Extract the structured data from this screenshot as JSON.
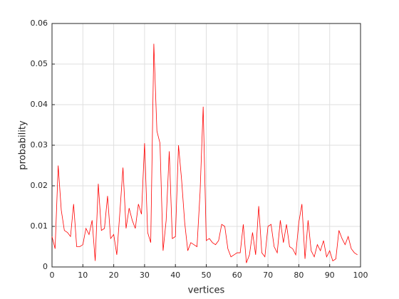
{
  "chart_data": {
    "type": "line",
    "xlabel": "vertices",
    "ylabel": "probability",
    "x": [
      0,
      1,
      2,
      3,
      4,
      5,
      6,
      7,
      8,
      9,
      10,
      11,
      12,
      13,
      14,
      15,
      16,
      17,
      18,
      19,
      20,
      21,
      22,
      23,
      24,
      25,
      26,
      27,
      28,
      29,
      30,
      31,
      32,
      33,
      34,
      35,
      36,
      37,
      38,
      39,
      40,
      41,
      42,
      43,
      44,
      45,
      46,
      47,
      48,
      49,
      50,
      51,
      52,
      53,
      54,
      55,
      56,
      57,
      58,
      59,
      60,
      61,
      62,
      63,
      64,
      65,
      66,
      67,
      68,
      69,
      70,
      71,
      72,
      73,
      74,
      75,
      76,
      77,
      78,
      79,
      80,
      81,
      82,
      83,
      84,
      85,
      86,
      87,
      88,
      89,
      90,
      91,
      92,
      93,
      94,
      95,
      96,
      97,
      98,
      99
    ],
    "series": [
      {
        "color": "#ff0000",
        "values": [
          0.0075,
          0.0045,
          0.025,
          0.014,
          0.009,
          0.0085,
          0.0075,
          0.0155,
          0.005,
          0.005,
          0.0055,
          0.0095,
          0.008,
          0.0115,
          0.0015,
          0.0205,
          0.009,
          0.0095,
          0.0175,
          0.007,
          0.008,
          0.003,
          0.0135,
          0.0245,
          0.0095,
          0.0145,
          0.0115,
          0.0095,
          0.0155,
          0.013,
          0.0305,
          0.0085,
          0.006,
          0.055,
          0.0335,
          0.0305,
          0.004,
          0.0115,
          0.0285,
          0.007,
          0.0075,
          0.03,
          0.0215,
          0.011,
          0.004,
          0.006,
          0.0055,
          0.005,
          0.0185,
          0.0395,
          0.0065,
          0.007,
          0.006,
          0.0055,
          0.0065,
          0.0105,
          0.01,
          0.0045,
          0.0025,
          0.003,
          0.0035,
          0.0035,
          0.0105,
          0.001,
          0.003,
          0.0085,
          0.003,
          0.015,
          0.0035,
          0.0025,
          0.01,
          0.0105,
          0.005,
          0.0035,
          0.0115,
          0.006,
          0.0105,
          0.005,
          0.0045,
          0.003,
          0.011,
          0.0155,
          0.002,
          0.0115,
          0.004,
          0.0025,
          0.0055,
          0.004,
          0.0065,
          0.0025,
          0.004,
          0.0015,
          0.002,
          0.009,
          0.007,
          0.0055,
          0.0075,
          0.0045,
          0.0035,
          0.003
        ]
      }
    ],
    "xlim": [
      0,
      100
    ],
    "xticks": [
      0,
      10,
      20,
      30,
      40,
      50,
      60,
      70,
      80,
      90,
      100
    ],
    "ylim": [
      0,
      0.06
    ],
    "yticks": [
      0,
      0.01,
      0.02,
      0.03,
      0.04,
      0.05,
      0.06
    ],
    "grid": true
  }
}
